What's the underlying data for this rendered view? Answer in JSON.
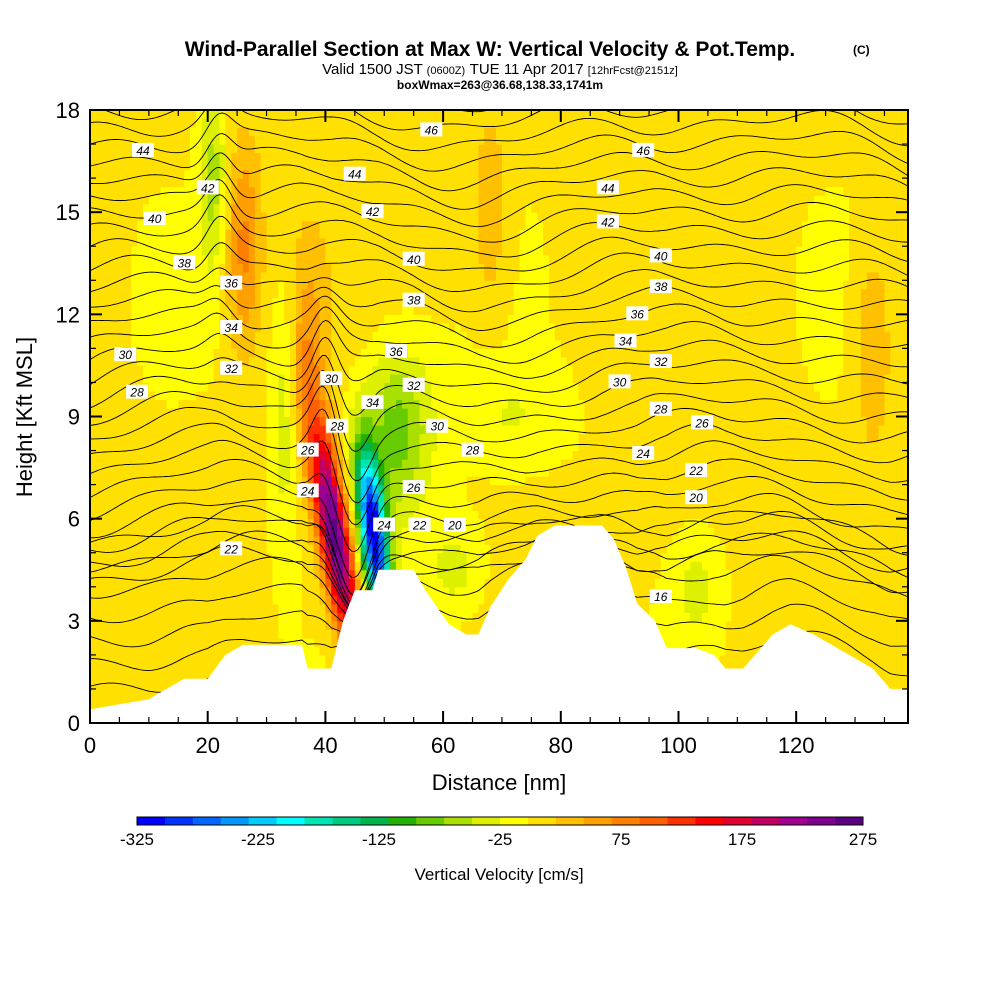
{
  "chart_data": {
    "type": "heatmap",
    "title": "Wind-Parallel Section at Max W: Vertical Velocity & Pot.Temp.",
    "title_flag": "(C)",
    "subtitle_parts": [
      "Valid 1500 JST ",
      "(0600Z)",
      " TUE 11 Apr 2017 ",
      "[12hrFcst@2151z]"
    ],
    "subtitle2": "boxWmax=263@36.68,138.33,1741m",
    "xlabel": "Distance [nm]",
    "ylabel": "Height [Kft MSL]",
    "xlim": [
      0,
      139
    ],
    "ylim": [
      0,
      18
    ],
    "x_ticks": [
      0,
      20,
      40,
      60,
      80,
      100,
      120
    ],
    "y_ticks": [
      0,
      3,
      6,
      9,
      12,
      15,
      18
    ],
    "colorbar": {
      "label": "Vertical Velocity [cm/s]",
      "tick_labels": [
        -325,
        -225,
        -125,
        -25,
        75,
        175,
        275
      ],
      "colors": [
        "#0000ff",
        "#0033ff",
        "#0066ff",
        "#0099ff",
        "#00ccff",
        "#00ffff",
        "#00e6b3",
        "#00cc80",
        "#00b34d",
        "#22b300",
        "#66cc00",
        "#aae000",
        "#ddf000",
        "#ffff00",
        "#ffe000",
        "#ffc000",
        "#ffa000",
        "#ff8000",
        "#ff6000",
        "#ff3000",
        "#ff0000",
        "#e00030",
        "#c00060",
        "#a00090",
        "#800090",
        "#5a0080"
      ]
    },
    "terrain_height_kft": [
      [
        0,
        0.4
      ],
      [
        10,
        0.7
      ],
      [
        13,
        1.0
      ],
      [
        16,
        1.3
      ],
      [
        20,
        1.3
      ],
      [
        23,
        2.0
      ],
      [
        26,
        2.3
      ],
      [
        36,
        2.3
      ],
      [
        37,
        1.6
      ],
      [
        41,
        1.6
      ],
      [
        42,
        2.3
      ],
      [
        43,
        3.0
      ],
      [
        45,
        3.9
      ],
      [
        48,
        3.9
      ],
      [
        49,
        4.5
      ],
      [
        55,
        4.5
      ],
      [
        57,
        3.9
      ],
      [
        59,
        3.4
      ],
      [
        61,
        2.9
      ],
      [
        64,
        2.6
      ],
      [
        66,
        2.6
      ],
      [
        68,
        3.4
      ],
      [
        71,
        4.2
      ],
      [
        74,
        4.8
      ],
      [
        76,
        5.5
      ],
      [
        79,
        5.8
      ],
      [
        87,
        5.8
      ],
      [
        89,
        5.4
      ],
      [
        91,
        4.6
      ],
      [
        93,
        3.5
      ],
      [
        96,
        3.0
      ],
      [
        98,
        2.2
      ],
      [
        103,
        2.2
      ],
      [
        106,
        2.0
      ],
      [
        108,
        1.6
      ],
      [
        111,
        1.6
      ],
      [
        114,
        2.2
      ],
      [
        116,
        2.6
      ],
      [
        119,
        2.9
      ],
      [
        123,
        2.6
      ],
      [
        127,
        2.2
      ],
      [
        130,
        1.9
      ],
      [
        133,
        1.6
      ],
      [
        136,
        1.0
      ],
      [
        139,
        1.0
      ]
    ],
    "theta_contour_labels": [
      {
        "text": "46",
        "x": 58,
        "y": 17.4
      },
      {
        "text": "46",
        "x": 94,
        "y": 16.8
      },
      {
        "text": "44",
        "x": 9,
        "y": 16.8
      },
      {
        "text": "44",
        "x": 45,
        "y": 16.1
      },
      {
        "text": "44",
        "x": 88,
        "y": 15.7
      },
      {
        "text": "42",
        "x": 20,
        "y": 15.7
      },
      {
        "text": "42",
        "x": 48,
        "y": 15.0
      },
      {
        "text": "42",
        "x": 88,
        "y": 14.7
      },
      {
        "text": "40",
        "x": 11,
        "y": 14.8
      },
      {
        "text": "40",
        "x": 55,
        "y": 13.6
      },
      {
        "text": "40",
        "x": 97,
        "y": 13.7
      },
      {
        "text": "38",
        "x": 16,
        "y": 13.5
      },
      {
        "text": "38",
        "x": 55,
        "y": 12.4
      },
      {
        "text": "38",
        "x": 97,
        "y": 12.8
      },
      {
        "text": "36",
        "x": 24,
        "y": 12.9
      },
      {
        "text": "36",
        "x": 52,
        "y": 10.9
      },
      {
        "text": "36",
        "x": 93,
        "y": 12.0
      },
      {
        "text": "34",
        "x": 24,
        "y": 11.6
      },
      {
        "text": "34",
        "x": 48,
        "y": 9.4
      },
      {
        "text": "34",
        "x": 91,
        "y": 11.2
      },
      {
        "text": "32",
        "x": 24,
        "y": 10.4
      },
      {
        "text": "32",
        "x": 55,
        "y": 9.9
      },
      {
        "text": "32",
        "x": 97,
        "y": 10.6
      },
      {
        "text": "30",
        "x": 6,
        "y": 10.8
      },
      {
        "text": "30",
        "x": 41,
        "y": 10.1
      },
      {
        "text": "30",
        "x": 59,
        "y": 8.7
      },
      {
        "text": "30",
        "x": 90,
        "y": 10.0
      },
      {
        "text": "28",
        "x": 8,
        "y": 9.7
      },
      {
        "text": "28",
        "x": 42,
        "y": 8.7
      },
      {
        "text": "28",
        "x": 65,
        "y": 8.0
      },
      {
        "text": "28",
        "x": 97,
        "y": 9.2
      },
      {
        "text": "26",
        "x": 37,
        "y": 8.0
      },
      {
        "text": "26",
        "x": 55,
        "y": 6.9
      },
      {
        "text": "26",
        "x": 104,
        "y": 8.8
      },
      {
        "text": "24",
        "x": 37,
        "y": 6.8
      },
      {
        "text": "24",
        "x": 50,
        "y": 5.8
      },
      {
        "text": "24",
        "x": 94,
        "y": 7.9
      },
      {
        "text": "22",
        "x": 24,
        "y": 5.1
      },
      {
        "text": "22",
        "x": 56,
        "y": 5.8
      },
      {
        "text": "22",
        "x": 103,
        "y": 7.4
      },
      {
        "text": "20",
        "x": 62,
        "y": 5.8
      },
      {
        "text": "20",
        "x": 103,
        "y": 6.6
      },
      {
        "text": "16",
        "x": 97,
        "y": 3.7
      }
    ]
  }
}
